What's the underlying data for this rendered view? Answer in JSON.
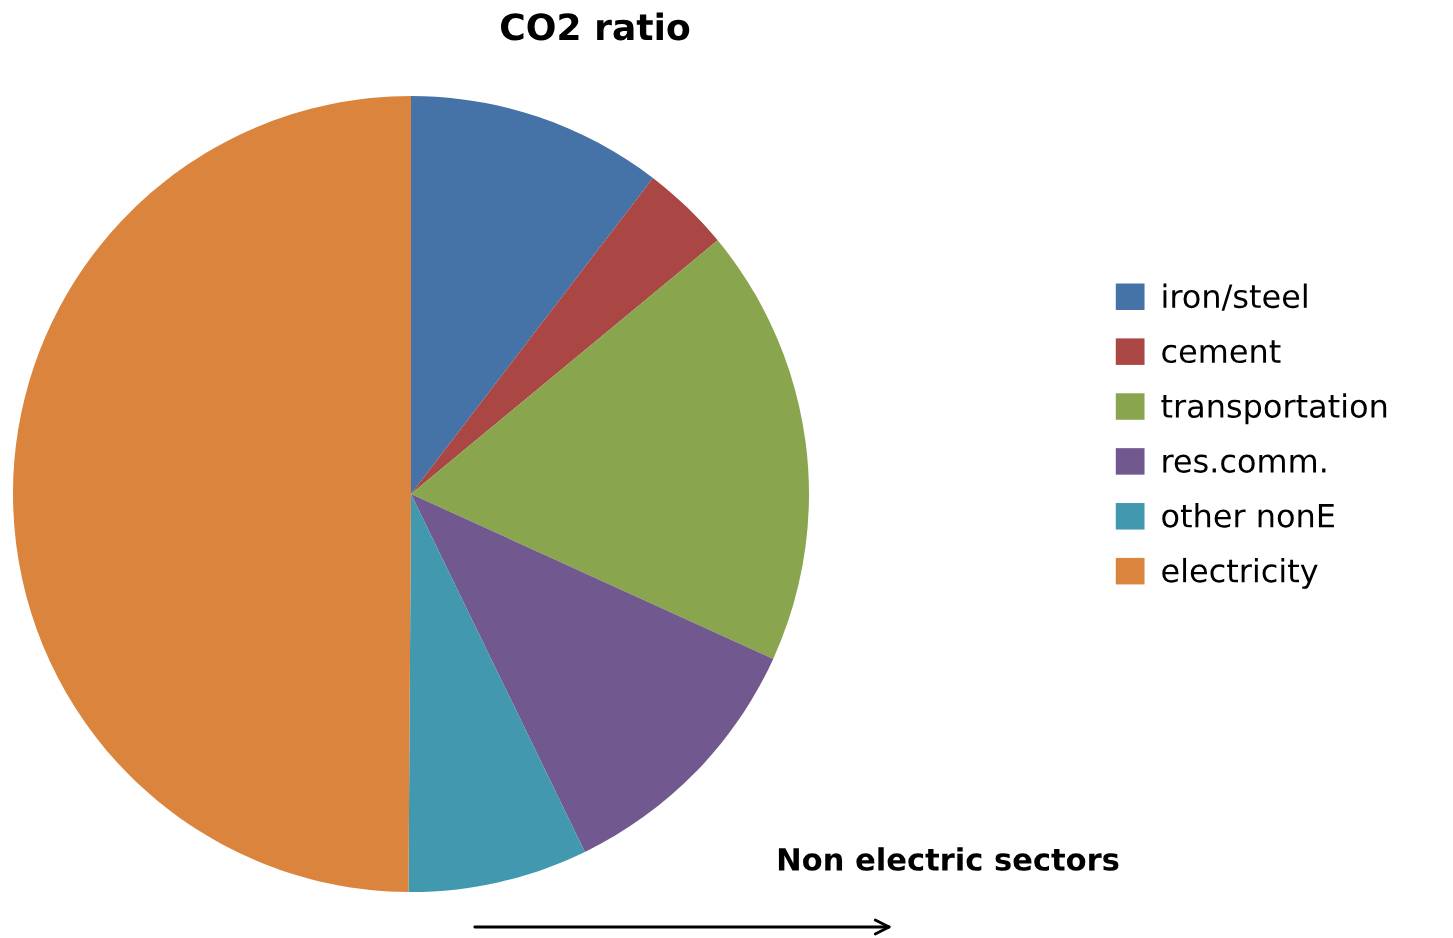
{
  "chart_data": {
    "type": "pie",
    "title": "CO2 ratio",
    "categories": [
      "iron/steel",
      "cement",
      "transportation",
      "res.comm.",
      "other nonE",
      "electricity"
    ],
    "values": [
      10.4,
      3.6,
      17.8,
      11.0,
      7.3,
      49.9
    ],
    "colors": [
      "#4572a7",
      "#aa4643",
      "#89a54e",
      "#71588f",
      "#4198af",
      "#db843d"
    ],
    "legend": "right",
    "annotations": [
      "Non electric sectors"
    ]
  }
}
